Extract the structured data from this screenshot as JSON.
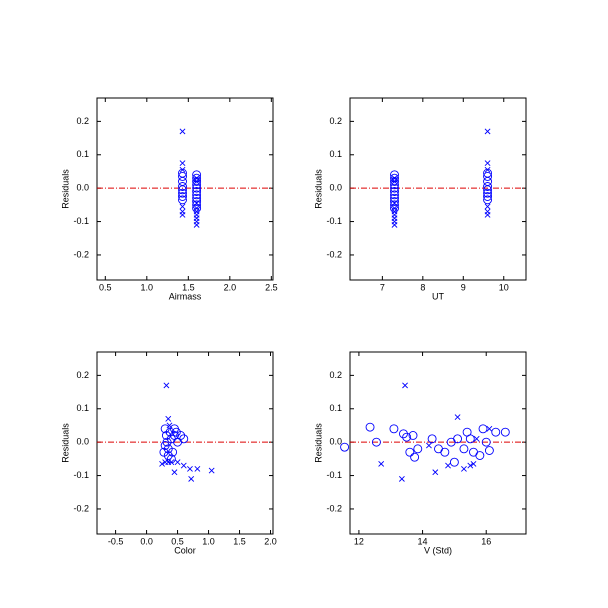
{
  "chart_data": [
    {
      "type": "scatter",
      "x_label": "Airmass",
      "y_label": "Residuals",
      "xlim": [
        0.4,
        2.52
      ],
      "ylim": [
        -0.275,
        0.27
      ],
      "xticks": [
        0.5,
        {
          "value": 1,
          "label": "1.0"
        },
        1.5,
        {
          "value": 2,
          "label": "2.0"
        },
        2.5
      ],
      "yticks": [
        -0.2,
        -0.1,
        {
          "value": 0,
          "label": "0.0"
        },
        0.1,
        0.2
      ],
      "hline": 0,
      "hline_color": "#dd0000",
      "series": [
        {
          "marker": "circle",
          "color": "#0000ff",
          "x": [
            1.43,
            1.43,
            1.43,
            1.43,
            1.43,
            1.43,
            1.43,
            1.43,
            1.6,
            1.6,
            1.6,
            1.6,
            1.6,
            1.6,
            1.6,
            1.6,
            1.6,
            1.6,
            1.6
          ],
          "values": [
            0.045,
            0.035,
            0.02,
            0.005,
            -0.005,
            -0.015,
            -0.025,
            -0.035,
            0.04,
            0.03,
            0.02,
            0.01,
            0.0,
            -0.01,
            -0.02,
            -0.03,
            -0.04,
            -0.05,
            -0.06
          ]
        },
        {
          "marker": "x",
          "color": "#0000ff",
          "x": [
            1.43,
            1.43,
            1.43,
            1.43,
            1.43,
            1.43,
            1.6,
            1.6,
            1.6,
            1.6,
            1.6,
            1.6,
            1.6,
            1.6,
            1.6
          ],
          "values": [
            0.17,
            0.075,
            0.055,
            -0.055,
            -0.07,
            -0.08,
            0.03,
            0.02,
            -0.045,
            -0.06,
            -0.07,
            -0.08,
            -0.09,
            -0.1,
            -0.11
          ]
        }
      ]
    },
    {
      "type": "scatter",
      "x_label": "UT",
      "y_label": "Residuals",
      "xlim": [
        6.2,
        10.55
      ],
      "ylim": [
        -0.275,
        0.27
      ],
      "xticks": [
        7,
        8,
        9,
        10
      ],
      "yticks": [
        -0.2,
        -0.1,
        {
          "value": 0,
          "label": "0.0"
        },
        0.1,
        0.2
      ],
      "hline": 0,
      "hline_color": "#dd0000",
      "series": [
        {
          "marker": "circle",
          "color": "#0000ff",
          "x": [
            9.6,
            9.6,
            9.6,
            9.6,
            9.6,
            9.6,
            9.6,
            9.6,
            7.3,
            7.3,
            7.3,
            7.3,
            7.3,
            7.3,
            7.3,
            7.3,
            7.3,
            7.3,
            7.3
          ],
          "values": [
            0.045,
            0.035,
            0.02,
            0.005,
            -0.005,
            -0.015,
            -0.025,
            -0.035,
            0.04,
            0.03,
            0.02,
            0.01,
            0.0,
            -0.01,
            -0.02,
            -0.03,
            -0.04,
            -0.05,
            -0.06
          ]
        },
        {
          "marker": "x",
          "color": "#0000ff",
          "x": [
            9.6,
            9.6,
            9.6,
            9.6,
            9.6,
            9.6,
            7.3,
            7.3,
            7.3,
            7.3,
            7.3,
            7.3,
            7.3,
            7.3,
            7.3
          ],
          "values": [
            0.17,
            0.075,
            0.055,
            -0.055,
            -0.07,
            -0.08,
            0.03,
            0.02,
            -0.045,
            -0.06,
            -0.07,
            -0.08,
            -0.09,
            -0.1,
            -0.11
          ]
        }
      ]
    },
    {
      "type": "scatter",
      "x_label": "Color",
      "y_label": "Residuals",
      "xlim": [
        -0.8,
        2.04
      ],
      "ylim": [
        -0.275,
        0.27
      ],
      "xticks": [
        -0.5,
        {
          "value": 0,
          "label": "0.0"
        },
        0.5,
        {
          "value": 1,
          "label": "1.0"
        },
        1.5,
        {
          "value": 2,
          "label": "2.0"
        }
      ],
      "yticks": [
        -0.2,
        -0.1,
        {
          "value": 0,
          "label": "0.0"
        },
        0.1,
        0.2
      ],
      "hline": 0,
      "hline_color": "#dd0000",
      "series": [
        {
          "marker": "circle",
          "color": "#0000ff",
          "x": [
            0.3,
            0.32,
            0.33,
            0.3,
            0.35,
            0.38,
            0.4,
            0.42,
            0.45,
            0.48,
            0.5,
            0.35,
            0.55,
            0.6,
            0.4,
            0.45,
            0.28
          ],
          "values": [
            0.04,
            0.02,
            0.0,
            -0.01,
            -0.02,
            0.03,
            0.01,
            -0.03,
            0.02,
            0.03,
            0.0,
            -0.04,
            0.02,
            0.01,
            -0.05,
            0.04,
            -0.03
          ]
        },
        {
          "marker": "x",
          "color": "#0000ff",
          "x": [
            0.32,
            0.35,
            0.37,
            0.3,
            0.35,
            0.45,
            0.5,
            0.6,
            0.7,
            0.72,
            0.82,
            1.05,
            0.4,
            0.25
          ],
          "values": [
            0.17,
            0.07,
            0.05,
            -0.06,
            -0.06,
            -0.09,
            -0.06,
            -0.07,
            -0.08,
            -0.11,
            -0.08,
            -0.085,
            -0.06,
            -0.065
          ]
        }
      ]
    },
    {
      "type": "scatter",
      "x_label": "V (Std)",
      "y_label": "Residuals",
      "xlim": [
        11.72,
        17.25
      ],
      "ylim": [
        -0.275,
        0.27
      ],
      "xticks": [
        12,
        14,
        16
      ],
      "yticks": [
        -0.2,
        -0.1,
        {
          "value": 0,
          "label": "0.0"
        },
        0.1,
        0.2
      ],
      "hline": 0,
      "hline_color": "#dd0000",
      "series": [
        {
          "marker": "circle",
          "color": "#0000ff",
          "x": [
            11.55,
            12.35,
            12.55,
            13.1,
            13.4,
            13.5,
            13.6,
            13.7,
            13.75,
            13.85,
            14.3,
            14.5,
            14.9,
            15.0,
            15.1,
            15.3,
            15.4,
            15.5,
            15.6,
            15.8,
            15.9,
            16.0,
            16.1,
            16.3,
            16.6,
            14.7
          ],
          "values": [
            -0.015,
            0.045,
            0.0,
            0.04,
            0.025,
            0.015,
            -0.03,
            0.02,
            -0.045,
            -0.02,
            0.01,
            -0.02,
            0.0,
            -0.06,
            0.01,
            -0.02,
            0.03,
            0.01,
            -0.03,
            -0.04,
            0.04,
            0.0,
            -0.025,
            0.03,
            0.03,
            -0.03
          ]
        },
        {
          "marker": "x",
          "color": "#0000ff",
          "x": [
            12.7,
            13.45,
            13.35,
            14.4,
            14.8,
            15.1,
            15.3,
            15.5,
            15.6,
            15.7,
            16.1,
            14.2
          ],
          "values": [
            -0.065,
            0.17,
            -0.11,
            -0.09,
            -0.07,
            0.075,
            -0.08,
            -0.07,
            -0.065,
            0.01,
            0.04,
            -0.01
          ]
        }
      ]
    }
  ]
}
